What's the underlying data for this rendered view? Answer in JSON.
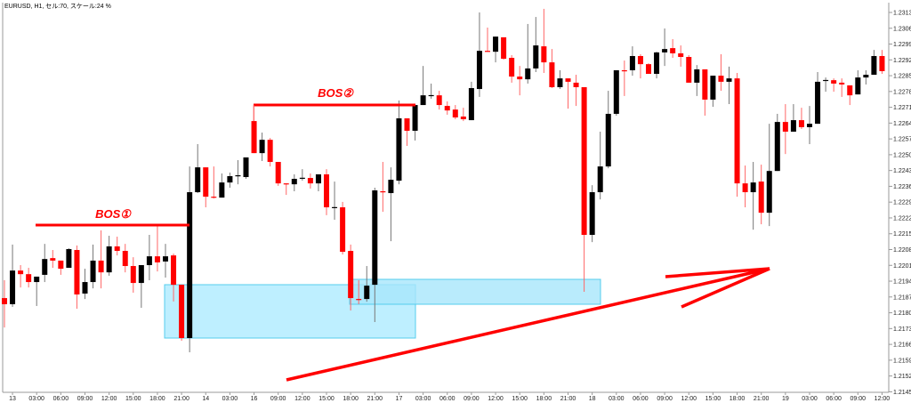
{
  "header": {
    "title": "EURUSD, H1, セル:70, スケール:24 %"
  },
  "annotations": {
    "bos1_label": "BOS①",
    "bos2_label": "BOS②",
    "line_color": "#ff0000",
    "zone_color": "#bbeeff"
  },
  "colors": {
    "bull": "#000000",
    "bear": "#ff0000",
    "bull_wick": "#777777",
    "bear_wick": "#ff6666"
  },
  "chart_data": {
    "type": "candlestick",
    "symbol": "EURUSD",
    "timeframe": "H1",
    "ylim": [
      1.2145,
      1.2313
    ],
    "y_ticks": [
      "1.23130",
      "1.23060",
      "1.22990",
      "1.22920",
      "1.22850",
      "1.22780",
      "1.22710",
      "1.22640",
      "1.22570",
      "1.22500",
      "1.22430",
      "1.22360",
      "1.22290",
      "1.22220",
      "1.22150",
      "1.22080",
      "1.22010",
      "1.21940",
      "1.21870",
      "1.21800",
      "1.21730",
      "1.21660",
      "1.21590",
      "1.21520",
      "1.21450"
    ],
    "x_tick_labels": [
      "13",
      "03:00",
      "06:00",
      "09:00",
      "12:00",
      "15:00",
      "18:00",
      "21:00",
      "14",
      "03:00",
      "16",
      "09:00",
      "12:00",
      "15:00",
      "18:00",
      "21:00",
      "17",
      "03:00",
      "06:00",
      "09:00",
      "12:00",
      "15:00",
      "18:00",
      "21:00",
      "18",
      "03:00",
      "06:00",
      "09:00",
      "12:00",
      "15:00",
      "18:00",
      "21:00",
      "19",
      "03:00",
      "06:00",
      "09:00",
      "12:00"
    ],
    "ohlc_columns": [
      "open",
      "high",
      "low",
      "close"
    ],
    "ohlc": [
      [
        1.21865,
        1.21944,
        1.21735,
        1.21838
      ],
      [
        1.21838,
        1.22102,
        1.21826,
        1.21987
      ],
      [
        1.21987,
        1.22011,
        1.21912,
        1.21971
      ],
      [
        1.21971,
        1.21999,
        1.21912,
        1.21936
      ],
      [
        1.21936,
        1.2196,
        1.2183,
        1.2196
      ],
      [
        1.21968,
        1.22105,
        1.21936,
        1.22038
      ],
      [
        1.22042,
        1.22078,
        1.21999,
        1.22031
      ],
      [
        1.22031,
        1.22031,
        1.21968,
        1.21995
      ],
      [
        1.21999,
        1.22086,
        1.21999,
        1.22082
      ],
      [
        1.22078,
        1.22098,
        1.21818,
        1.21881
      ],
      [
        1.21885,
        1.21995,
        1.21861,
        1.21936
      ],
      [
        1.21936,
        1.22102,
        1.21908,
        1.22031
      ],
      [
        1.22031,
        1.22165,
        1.21908,
        1.21979
      ],
      [
        1.21979,
        1.22141,
        1.21964,
        1.22094
      ],
      [
        1.22094,
        1.22137,
        1.22054,
        1.22074
      ],
      [
        1.22074,
        1.22105,
        1.21979,
        1.22007
      ],
      [
        1.22007,
        1.22046,
        1.21889,
        1.21932
      ],
      [
        1.21932,
        1.22011,
        1.21822,
        1.22011
      ],
      [
        1.22011,
        1.22145,
        1.21944,
        1.2205
      ],
      [
        1.2205,
        1.22184,
        1.21983,
        1.22023
      ],
      [
        1.22027,
        1.22105,
        1.21956,
        1.2205
      ],
      [
        1.22054,
        1.22062,
        1.2185,
        1.21924
      ],
      [
        1.21924,
        1.21924,
        1.21676,
        1.21688
      ],
      [
        1.21688,
        1.22448,
        1.21625,
        1.22334
      ],
      [
        1.22334,
        1.22547,
        1.2233,
        1.22444
      ],
      [
        1.22444,
        1.22444,
        1.22267,
        1.22314
      ],
      [
        1.22314,
        1.22448,
        1.22306,
        1.2231
      ],
      [
        1.2231,
        1.22417,
        1.2231,
        1.22377
      ],
      [
        1.22377,
        1.22421,
        1.22354,
        1.22405
      ],
      [
        1.22405,
        1.22476,
        1.22369,
        1.22409
      ],
      [
        1.22401,
        1.22488,
        1.22393,
        1.22488
      ],
      [
        1.22649,
        1.22724,
        1.22507,
        1.22507
      ],
      [
        1.22507,
        1.22598,
        1.22472,
        1.22566
      ],
      [
        1.22566,
        1.22574,
        1.22448,
        1.22468
      ],
      [
        1.22468,
        1.22468,
        1.22362,
        1.22373
      ],
      [
        1.22373,
        1.22373,
        1.22322,
        1.22369
      ],
      [
        1.22369,
        1.22413,
        1.22338,
        1.22393
      ],
      [
        1.22397,
        1.22436,
        1.22385,
        1.22398
      ],
      [
        1.22397,
        1.22417,
        1.2235,
        1.22373
      ],
      [
        1.22373,
        1.22413,
        1.22338,
        1.22413
      ],
      [
        1.22413,
        1.22436,
        1.22232,
        1.22267
      ],
      [
        1.22267,
        1.22381,
        1.22212,
        1.22268
      ],
      [
        1.22267,
        1.22291,
        1.22058,
        1.2207
      ],
      [
        1.22074,
        1.22102,
        1.2181,
        1.21865
      ],
      [
        1.21861,
        1.21944,
        1.21838,
        1.21857
      ],
      [
        1.21861,
        1.22007,
        1.21849,
        1.2192
      ],
      [
        1.21924,
        1.22354,
        1.21759,
        1.22342
      ],
      [
        1.22338,
        1.22468,
        1.22247,
        1.22334
      ],
      [
        1.2233,
        1.22444,
        1.22117,
        1.22389
      ],
      [
        1.22385,
        1.2274,
        1.22369,
        1.22661
      ],
      [
        1.22661,
        1.22661,
        1.22539,
        1.22606
      ],
      [
        1.22606,
        1.2272,
        1.22563,
        1.2272
      ],
      [
        1.2272,
        1.22893,
        1.2272,
        1.22763
      ],
      [
        1.22763,
        1.22815,
        1.22748,
        1.22764
      ],
      [
        1.22763,
        1.22783,
        1.227,
        1.2272
      ],
      [
        1.22716,
        1.22736,
        1.22677,
        1.22696
      ],
      [
        1.227,
        1.2272,
        1.22657,
        1.22665
      ],
      [
        1.22669,
        1.22708,
        1.22649,
        1.22657
      ],
      [
        1.22653,
        1.22823,
        1.22653,
        1.22795
      ],
      [
        1.22791,
        1.2313,
        1.22756,
        1.2296
      ],
      [
        1.2296,
        1.23063,
        1.22956,
        1.22956
      ],
      [
        1.22956,
        1.23023,
        1.22909,
        1.23023
      ],
      [
        1.2302,
        1.2302,
        1.22921,
        1.22925
      ],
      [
        1.22929,
        1.22941,
        1.22819,
        1.22846
      ],
      [
        1.22846,
        1.22893,
        1.22763,
        1.22834
      ],
      [
        1.22834,
        1.23079,
        1.22815,
        1.22882
      ],
      [
        1.22882,
        1.2311,
        1.22866,
        1.22984
      ],
      [
        1.2298,
        1.23146,
        1.22862,
        1.22909
      ],
      [
        1.22909,
        1.22968,
        1.22795,
        1.22799
      ],
      [
        1.22799,
        1.22874,
        1.22791,
        1.22838
      ],
      [
        1.22838,
        1.22838,
        1.22704,
        1.22823
      ],
      [
        1.22819,
        1.22854,
        1.22716,
        1.22799
      ],
      [
        1.22799,
        1.22799,
        1.21893,
        1.22145
      ],
      [
        1.22145,
        1.22365,
        1.22113,
        1.22334
      ],
      [
        1.22334,
        1.22602,
        1.22302,
        1.22448
      ],
      [
        1.22448,
        1.22783,
        1.2244,
        1.22681
      ],
      [
        1.22681,
        1.22874,
        1.22673,
        1.22874
      ],
      [
        1.22874,
        1.22917,
        1.2276,
        1.2287
      ],
      [
        1.22874,
        1.2298,
        1.2285,
        1.22937
      ],
      [
        1.22937,
        1.22945,
        1.22838,
        1.22901
      ],
      [
        1.22901,
        1.22905,
        1.22858,
        1.22858
      ],
      [
        1.22858,
        1.22956,
        1.22838,
        1.22953
      ],
      [
        1.22953,
        1.23059,
        1.22893,
        1.22968
      ],
      [
        1.22972,
        1.23012,
        1.22929,
        1.22949
      ],
      [
        1.22949,
        1.22984,
        1.2289,
        1.22933
      ],
      [
        1.22933,
        1.22941,
        1.22819,
        1.22819
      ],
      [
        1.22819,
        1.22897,
        1.2276,
        1.22878
      ],
      [
        1.22878,
        1.22878,
        1.22673,
        1.22744
      ],
      [
        1.22744,
        1.2285,
        1.22712,
        1.2285
      ],
      [
        1.2285,
        1.22945,
        1.22783,
        1.22823
      ],
      [
        1.22823,
        1.2289,
        1.22724,
        1.22838
      ],
      [
        1.22838,
        1.22862,
        1.22314,
        1.22373
      ],
      [
        1.22373,
        1.22452,
        1.22267,
        1.22334
      ],
      [
        1.22334,
        1.22468,
        1.22168,
        1.22377
      ],
      [
        1.22381,
        1.22456,
        1.22192,
        1.22243
      ],
      [
        1.22243,
        1.22637,
        1.22184,
        1.22428
      ],
      [
        1.22428,
        1.22681,
        1.22428,
        1.22645
      ],
      [
        1.22645,
        1.22724,
        1.22503,
        1.22602
      ],
      [
        1.22602,
        1.22724,
        1.22602,
        1.22653
      ],
      [
        1.22653,
        1.22708,
        1.22614,
        1.22622
      ],
      [
        1.22622,
        1.22716,
        1.22547,
        1.22637
      ],
      [
        1.22637,
        1.22866,
        1.22637,
        1.22823
      ],
      [
        1.2283,
        1.22842,
        1.22779,
        1.22831
      ],
      [
        1.2283,
        1.22838,
        1.22779,
        1.22815
      ],
      [
        1.22819,
        1.22838,
        1.22756,
        1.22811
      ],
      [
        1.22807,
        1.22807,
        1.2272,
        1.22763
      ],
      [
        1.22767,
        1.22874,
        1.22767,
        1.22842
      ],
      [
        1.22842,
        1.22874,
        1.22811,
        1.22854
      ],
      [
        1.22854,
        1.22964,
        1.22854,
        1.22937
      ],
      [
        1.22937,
        1.22964,
        1.22858,
        1.2287
      ]
    ]
  }
}
